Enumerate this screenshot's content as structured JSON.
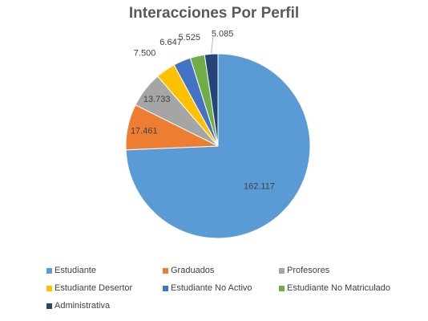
{
  "chart_data": {
    "type": "pie",
    "title": "Interacciones Por Perfil",
    "categories": [
      "Estudiante",
      "Graduados",
      "Profesores",
      "Estudiante Desertor",
      "Estudiante No Activo",
      "Estudiante No Matriculado",
      "Administrativa"
    ],
    "values": [
      162117,
      17461,
      13733,
      7500,
      6647,
      5525,
      5085
    ],
    "value_labels": [
      "162.117",
      "17.461",
      "13.733",
      "7.500",
      "6.647",
      "5.525",
      "5.085"
    ],
    "colors": [
      "#5B9BD5",
      "#ED7D31",
      "#A5A5A5",
      "#FFC000",
      "#4472C4",
      "#70AD47",
      "#264478"
    ],
    "legend_position": "bottom"
  }
}
